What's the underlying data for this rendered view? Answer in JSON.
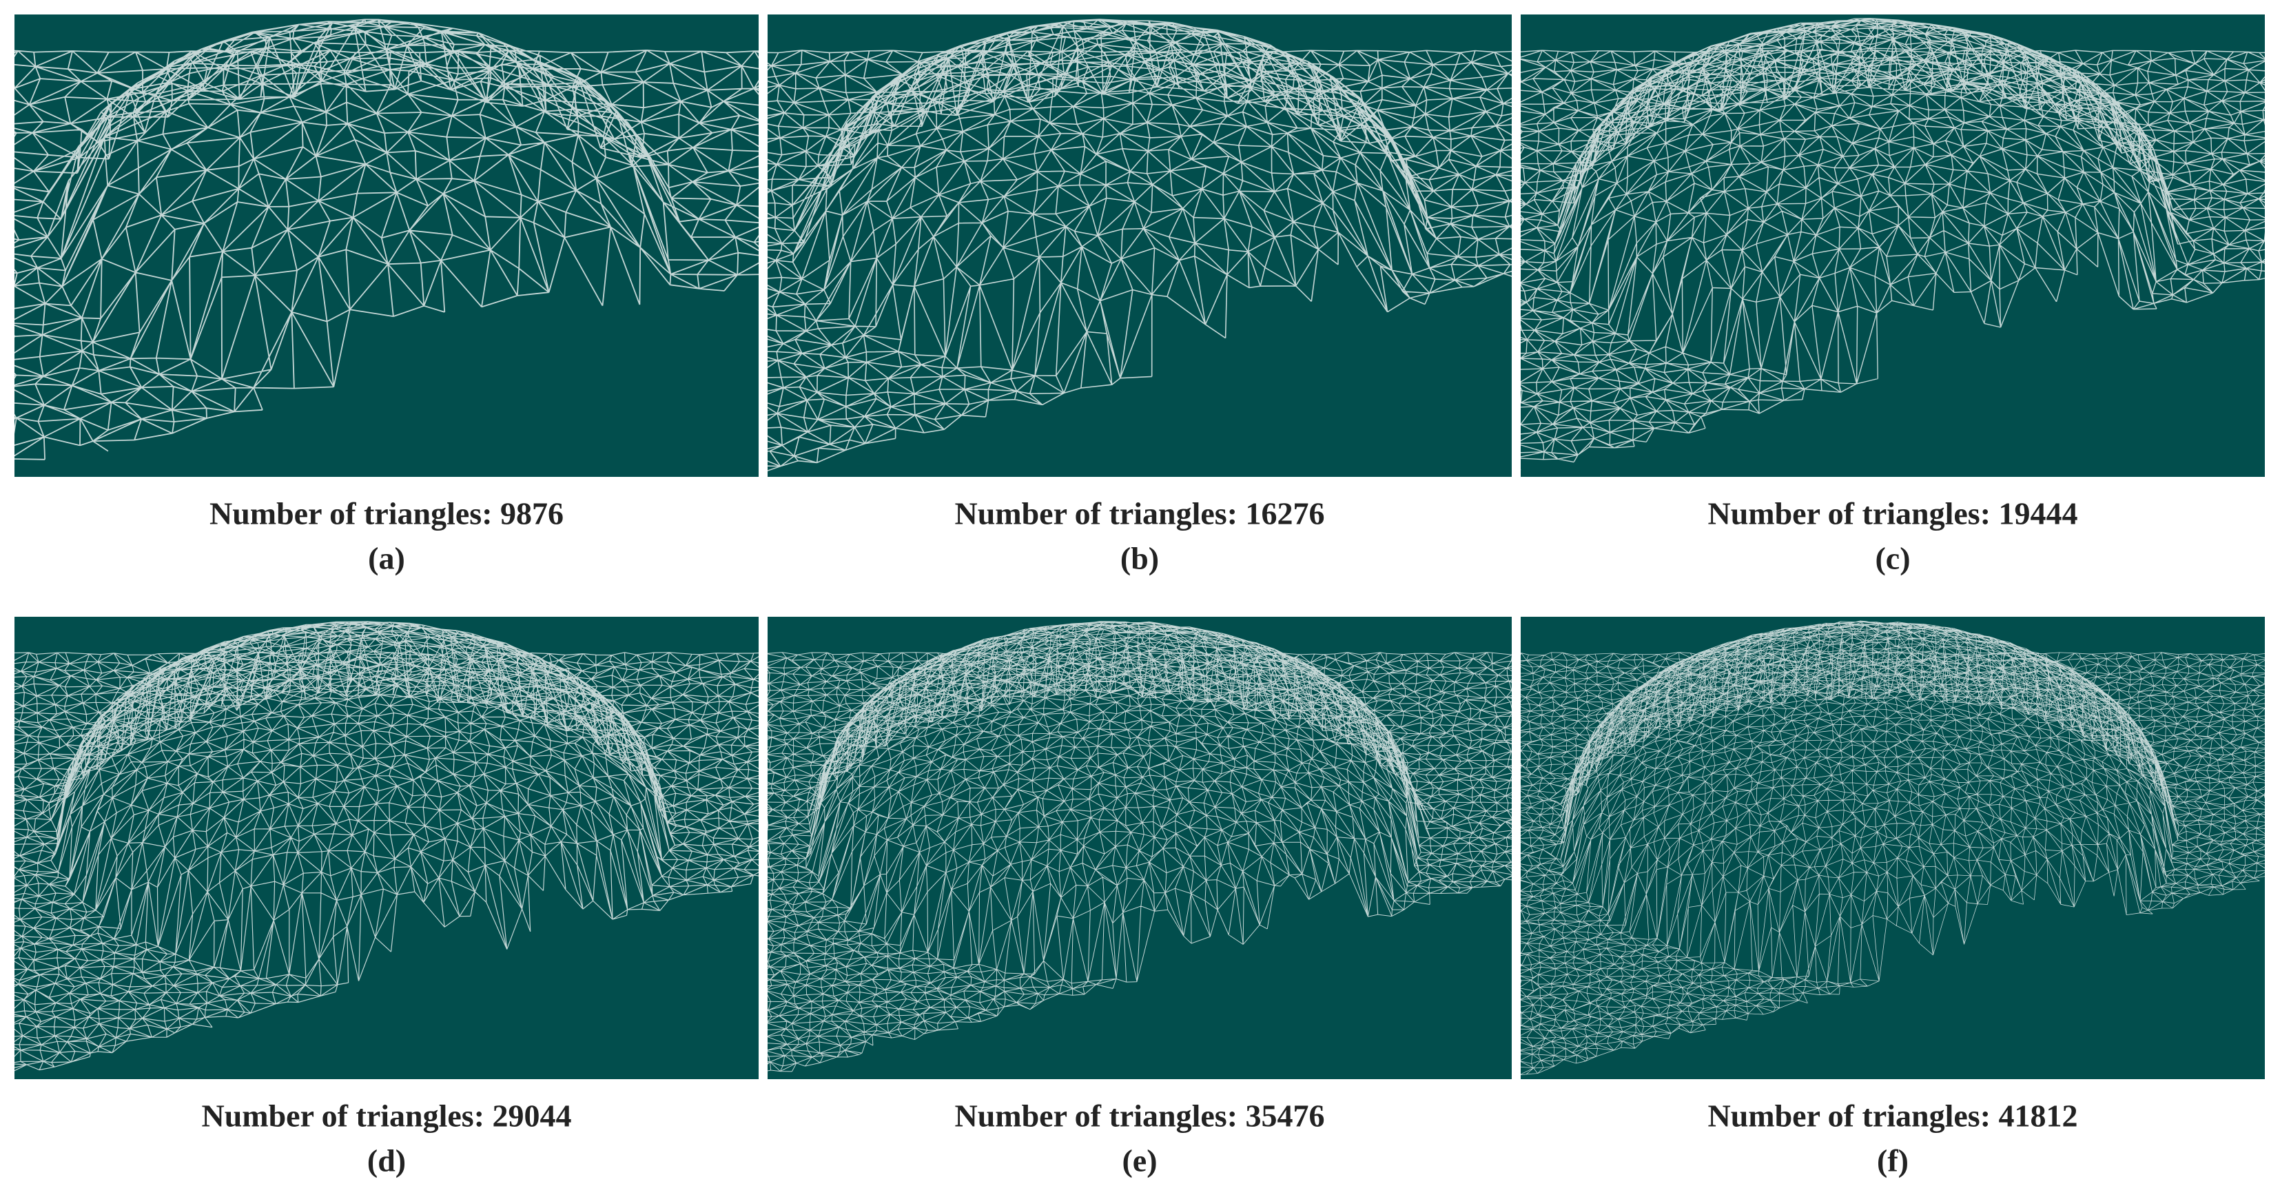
{
  "panels": [
    {
      "caption": "Number of triangles: 9876",
      "label": "(a)"
    },
    {
      "caption": "Number of triangles: 16276",
      "label": "(b)"
    },
    {
      "caption": "Number of triangles: 19444",
      "label": "(c)"
    },
    {
      "caption": "Number of triangles: 29044",
      "label": "(d)"
    },
    {
      "caption": "Number of triangles: 35476",
      "label": "(e)"
    },
    {
      "caption": "Number of triangles: 41812",
      "label": "(f)"
    }
  ]
}
